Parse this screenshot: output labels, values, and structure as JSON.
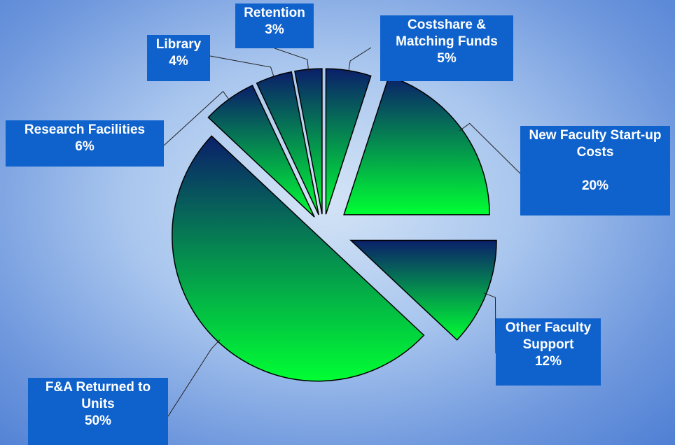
{
  "chart_data": {
    "type": "pie",
    "categories": [
      "Costshare & Matching Funds",
      "New Faculty Start-up Costs",
      "Other Faculty Support",
      "F&A Returned to Units",
      "Research Facilities",
      "Library",
      "Retention"
    ],
    "values": [
      5,
      20,
      12,
      50,
      6,
      4,
      3
    ],
    "value_labels": [
      "5%",
      "20%",
      "12%",
      "50%",
      "6%",
      "4%",
      "3%"
    ],
    "gradient_colors": [
      "#0a1f6a",
      "#00ff33"
    ]
  }
}
